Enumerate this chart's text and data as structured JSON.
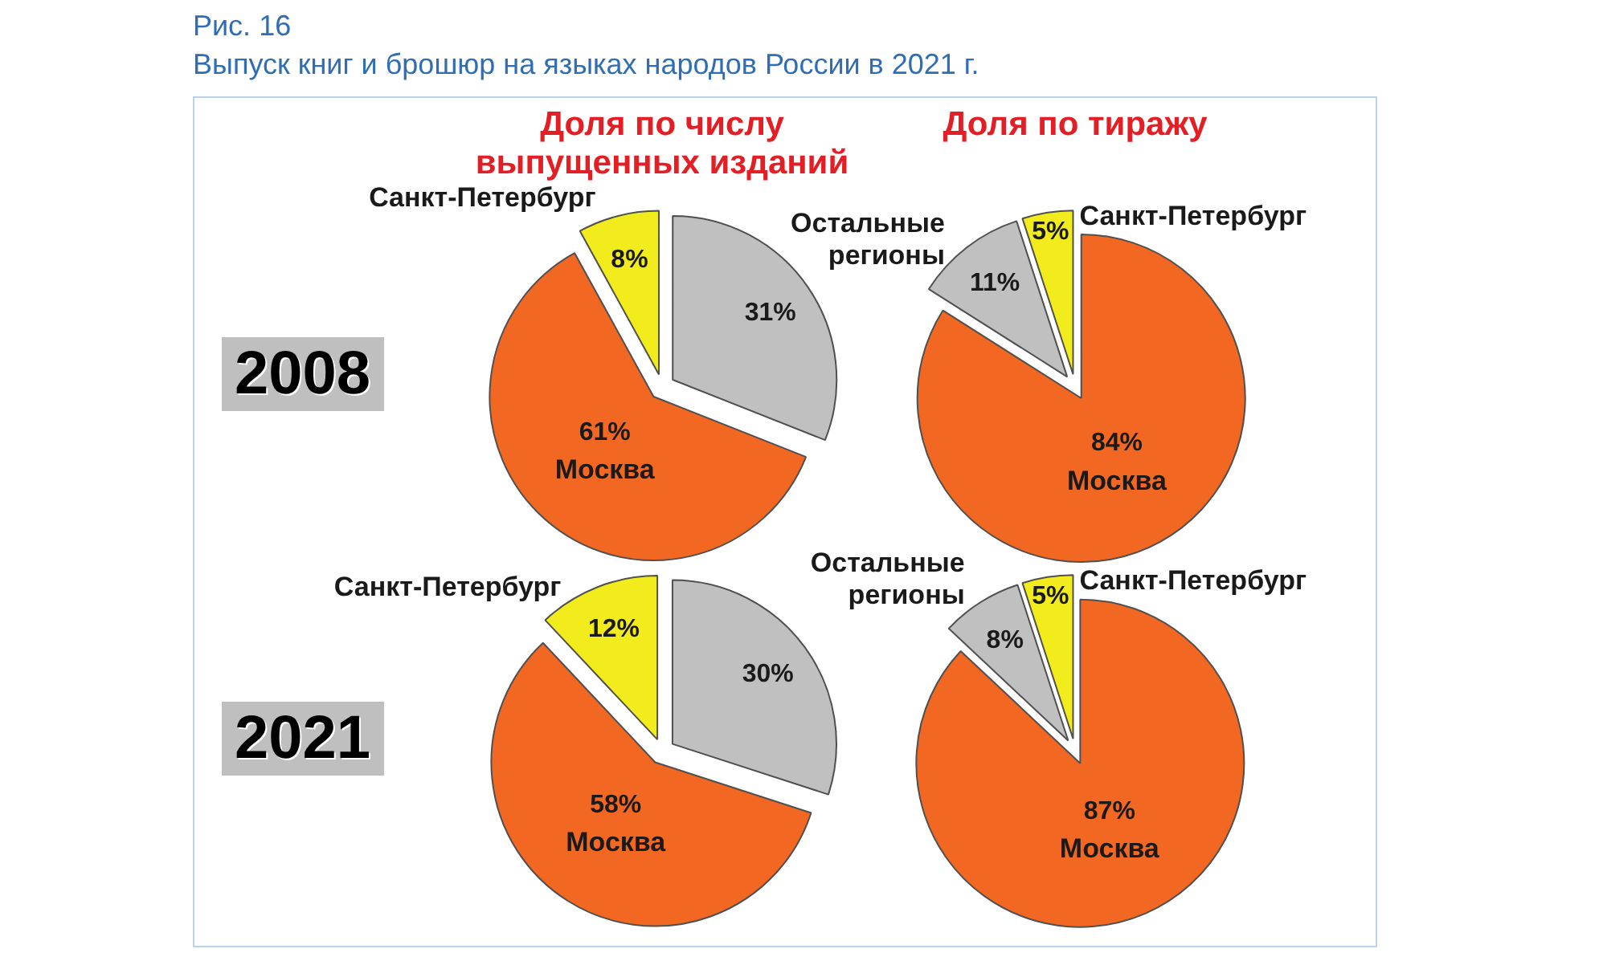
{
  "chart_data": [
    {
      "type": "pie",
      "title": "Доля по числу выпущенных изданий",
      "subtitle": "2008",
      "annotations": [
        "Рис. 16",
        "Выпуск книг и брошюр на языках народов России в 2021 г."
      ],
      "categories": [
        null,
        "Москва",
        "Санкт-Петербург"
      ],
      "values": [
        31,
        61,
        8
      ],
      "value_labels": [
        "31%",
        "61%",
        "8%"
      ],
      "colors": [
        "#c0c0c0",
        "#f26822",
        "#f2ec1c"
      ]
    },
    {
      "type": "pie",
      "title": "Доля по тиражу",
      "categories": [
        "Москва",
        "Остальные регионы",
        "Санкт-Петербург"
      ],
      "values": [
        84,
        11,
        5
      ],
      "value_labels": [
        "84%",
        "11%",
        "5%"
      ],
      "colors": [
        "#f26822",
        "#c0c0c0",
        "#f2ec1c"
      ]
    },
    {
      "type": "pie",
      "subtitle": "2021",
      "categories": [
        null,
        "Москва",
        "Санкт-Петербург"
      ],
      "values": [
        30,
        58,
        12
      ],
      "value_labels": [
        "30%",
        "58%",
        "12%"
      ],
      "colors": [
        "#c0c0c0",
        "#f26822",
        "#f2ec1c"
      ]
    },
    {
      "type": "pie",
      "categories": [
        "Москва",
        "Остальные регионы",
        "Санкт-Петербург"
      ],
      "values": [
        87,
        8,
        5
      ],
      "value_labels": [
        "87%",
        "8%",
        "5%"
      ],
      "colors": [
        "#f26822",
        "#c0c0c0",
        "#f2ec1c"
      ]
    }
  ]
}
